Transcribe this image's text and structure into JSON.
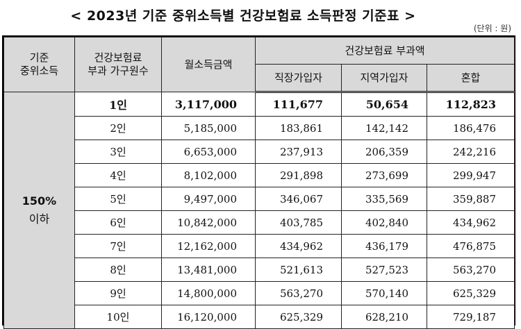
{
  "title": "< 2023년 기준 중위소득별 건강보험료 소득판정 기준표 >",
  "unit": "(단위 : 원)",
  "headers": {
    "col1_line1": "기준",
    "col1_line2": "중위소득",
    "col2_line1": "건강보험료",
    "col2_line2": "부과 가구원수",
    "col3": "월소득금액",
    "group": "건강보험료 부과액",
    "sub1": "직장가입자",
    "sub2": "지역가입자",
    "sub3": "혼합"
  },
  "group_label": {
    "line1": "150%",
    "line2": "이하"
  },
  "rows": [
    {
      "persons": "1인",
      "income": "3,117,000",
      "employee": "111,677",
      "regional": "50,654",
      "mixed": "112,823"
    },
    {
      "persons": "2인",
      "income": "5,185,000",
      "employee": "183,861",
      "regional": "142,142",
      "mixed": "186,476"
    },
    {
      "persons": "3인",
      "income": "6,653,000",
      "employee": "237,913",
      "regional": "206,359",
      "mixed": "242,216"
    },
    {
      "persons": "4인",
      "income": "8,102,000",
      "employee": "291,898",
      "regional": "273,699",
      "mixed": "299,947"
    },
    {
      "persons": "5인",
      "income": "9,497,000",
      "employee": "346,067",
      "regional": "335,569",
      "mixed": "359,887"
    },
    {
      "persons": "6인",
      "income": "10,842,000",
      "employee": "403,785",
      "regional": "402,840",
      "mixed": "434,962"
    },
    {
      "persons": "7인",
      "income": "12,162,000",
      "employee": "434,962",
      "regional": "436,179",
      "mixed": "476,875"
    },
    {
      "persons": "8인",
      "income": "13,481,000",
      "employee": "521,613",
      "regional": "527,523",
      "mixed": "563,270"
    },
    {
      "persons": "9인",
      "income": "14,800,000",
      "employee": "563,270",
      "regional": "570,140",
      "mixed": "625,329"
    },
    {
      "persons": "10인",
      "income": "16,120,000",
      "employee": "625,329",
      "regional": "628,210",
      "mixed": "729,187"
    }
  ]
}
